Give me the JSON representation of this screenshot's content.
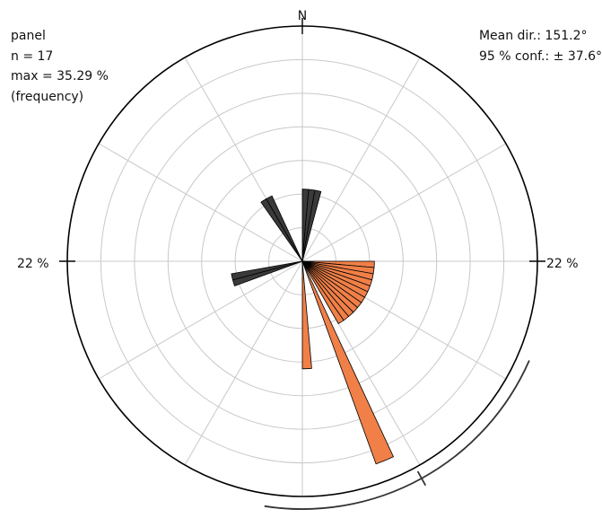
{
  "chart_data": {
    "type": "rose",
    "panel_label": "panel",
    "n_text": "n = 17",
    "max_text": "max = 35.29 %",
    "frequency_text": "(frequency)",
    "mean_dir_text": "Mean dir.: 151.2°",
    "conf_text": "95 % conf.: ± 37.6°",
    "north_label": "N",
    "scale_label_left": "22 %",
    "scale_label_right": "22 %",
    "grid_levels_percent": [
      5.5,
      11,
      16.5,
      22,
      27.5,
      33
    ],
    "outer_circle_percent": 38.5,
    "radial_lines_every_deg": 30,
    "bin_width_deg": 5,
    "mean_direction_deg": 151.2,
    "confidence_deg": 37.6,
    "confidence_arc_deg": [
      113.6,
      188.8
    ],
    "colors": {
      "highlight": "#f08048",
      "other": "#3a3a3a",
      "grid": "#c8c8c8",
      "outline": "#000000"
    },
    "highlight_bins": [
      {
        "start": 90,
        "end": 95,
        "value": 11.8
      },
      {
        "start": 95,
        "end": 100,
        "value": 11.8
      },
      {
        "start": 100,
        "end": 105,
        "value": 11.8
      },
      {
        "start": 105,
        "end": 110,
        "value": 11.8
      },
      {
        "start": 110,
        "end": 115,
        "value": 11.8
      },
      {
        "start": 115,
        "end": 120,
        "value": 11.8
      },
      {
        "start": 120,
        "end": 125,
        "value": 11.8
      },
      {
        "start": 125,
        "end": 130,
        "value": 11.8
      },
      {
        "start": 130,
        "end": 135,
        "value": 11.8
      },
      {
        "start": 135,
        "end": 140,
        "value": 11.8
      },
      {
        "start": 140,
        "end": 145,
        "value": 11.8
      },
      {
        "start": 145,
        "end": 150,
        "value": 11.8
      },
      {
        "start": 155,
        "end": 160,
        "value": 35.29
      },
      {
        "start": 175,
        "end": 180,
        "value": 17.6
      }
    ],
    "other_bins": [
      {
        "start": 0,
        "end": 5,
        "value": 11.8
      },
      {
        "start": 5,
        "end": 10,
        "value": 11.8
      },
      {
        "start": 10,
        "end": 15,
        "value": 11.8
      },
      {
        "start": 325,
        "end": 330,
        "value": 11.8
      },
      {
        "start": 330,
        "end": 335,
        "value": 11.8
      },
      {
        "start": 250,
        "end": 255,
        "value": 11.8
      },
      {
        "start": 255,
        "end": 260,
        "value": 11.8
      }
    ]
  }
}
